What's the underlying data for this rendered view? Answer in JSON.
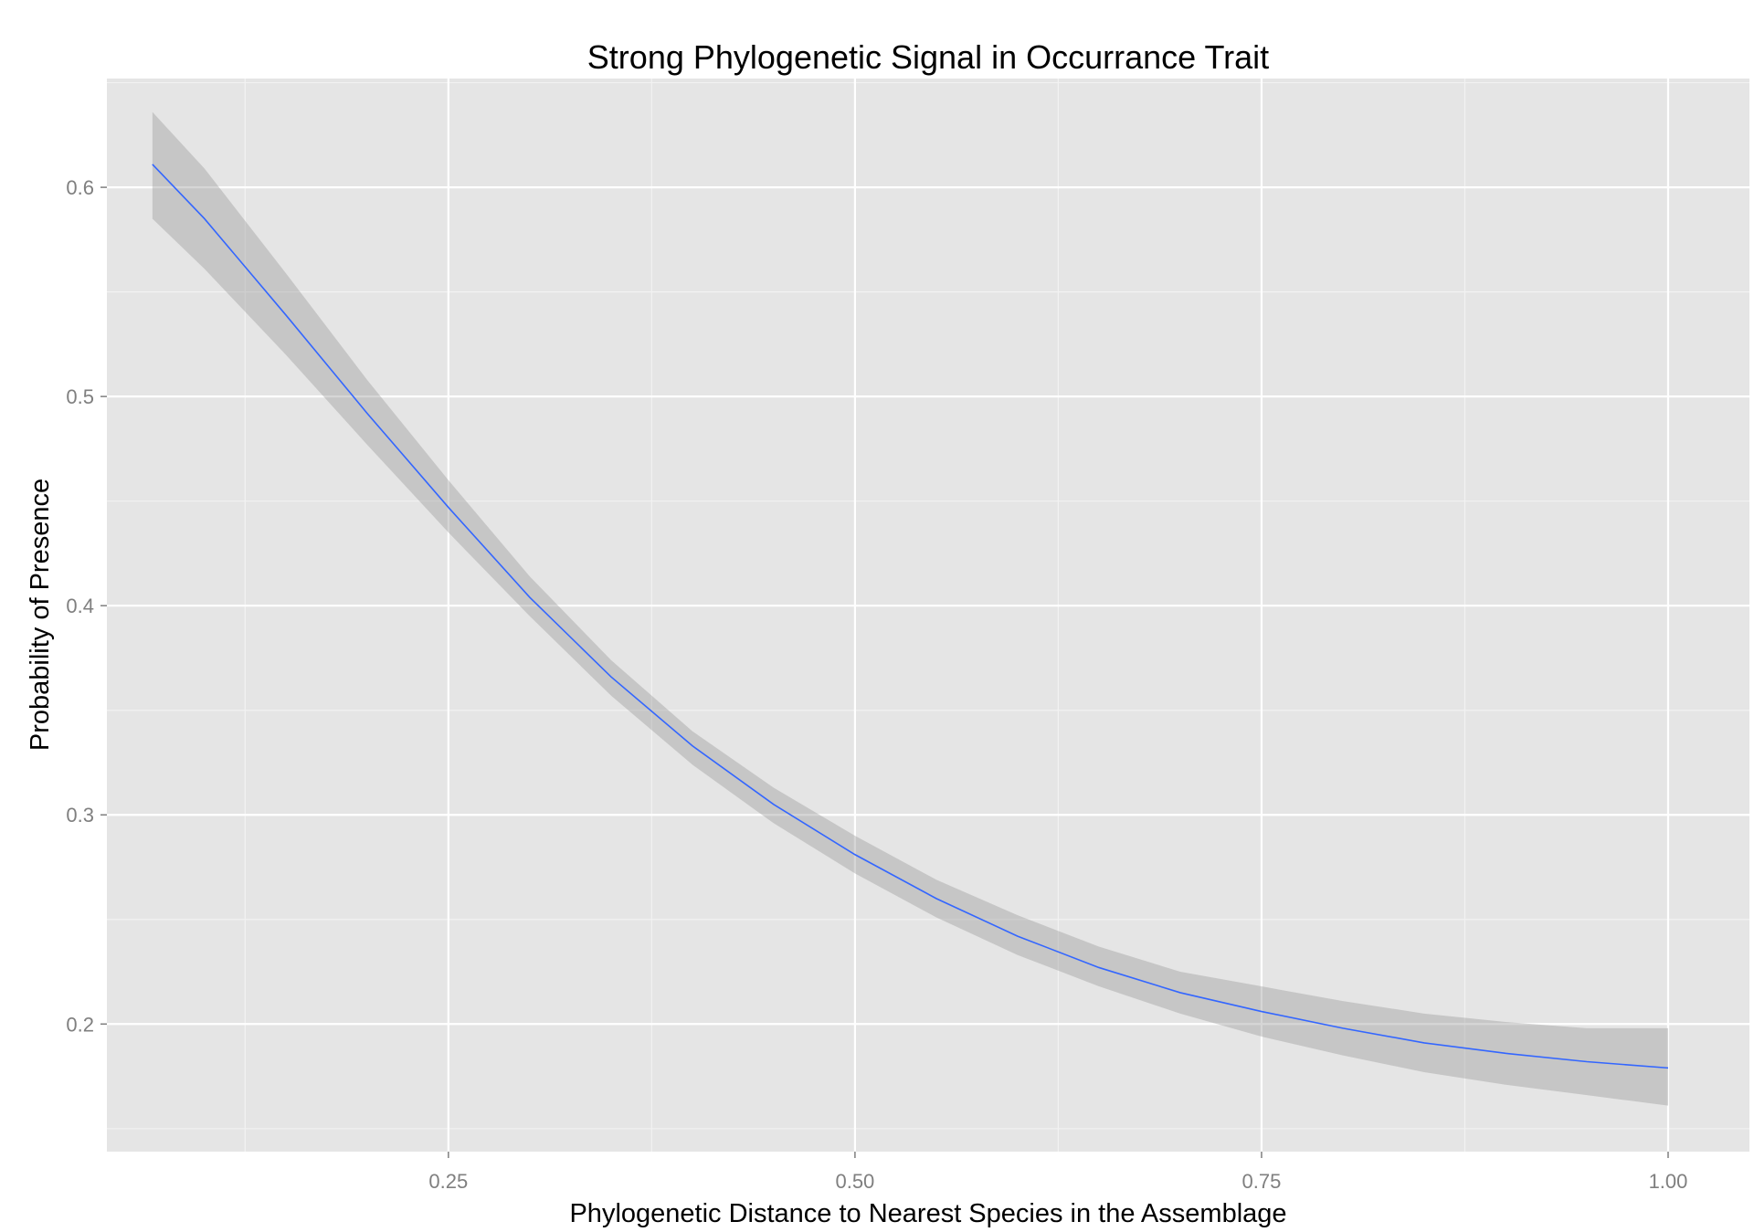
{
  "chart_data": {
    "type": "line",
    "title": "Strong Phylogenetic Signal in Occurrance Trait",
    "xlabel": "Phylogenetic Distance to Nearest Species in the Assemblage",
    "ylabel": "Probability of Presence",
    "xlim": [
      0.04,
      1.05
    ],
    "ylim": [
      0.139,
      0.652
    ],
    "x_ticks": [
      0.25,
      0.5,
      0.75,
      1.0
    ],
    "x_tick_labels": [
      "0.25",
      "0.50",
      "0.75",
      "1.00"
    ],
    "y_ticks": [
      0.2,
      0.3,
      0.4,
      0.5,
      0.6
    ],
    "y_tick_labels": [
      "0.2",
      "0.3",
      "0.4",
      "0.5",
      "0.6"
    ],
    "grid": true,
    "series": [
      {
        "color": "#3366FF",
        "band_color": "#999999",
        "x": [
          0.068,
          0.1,
          0.15,
          0.2,
          0.25,
          0.3,
          0.35,
          0.4,
          0.45,
          0.5,
          0.55,
          0.6,
          0.65,
          0.7,
          0.75,
          0.8,
          0.85,
          0.9,
          0.95,
          1.0
        ],
        "y": [
          0.611,
          0.585,
          0.539,
          0.492,
          0.447,
          0.404,
          0.366,
          0.333,
          0.305,
          0.281,
          0.26,
          0.242,
          0.227,
          0.215,
          0.206,
          0.198,
          0.191,
          0.186,
          0.182,
          0.179
        ],
        "lower": [
          0.585,
          0.561,
          0.52,
          0.477,
          0.435,
          0.395,
          0.357,
          0.324,
          0.296,
          0.272,
          0.251,
          0.233,
          0.218,
          0.205,
          0.194,
          0.185,
          0.177,
          0.171,
          0.166,
          0.161
        ],
        "upper": [
          0.636,
          0.609,
          0.559,
          0.508,
          0.46,
          0.414,
          0.374,
          0.34,
          0.313,
          0.29,
          0.269,
          0.252,
          0.237,
          0.225,
          0.218,
          0.211,
          0.205,
          0.201,
          0.198,
          0.198
        ]
      }
    ]
  }
}
